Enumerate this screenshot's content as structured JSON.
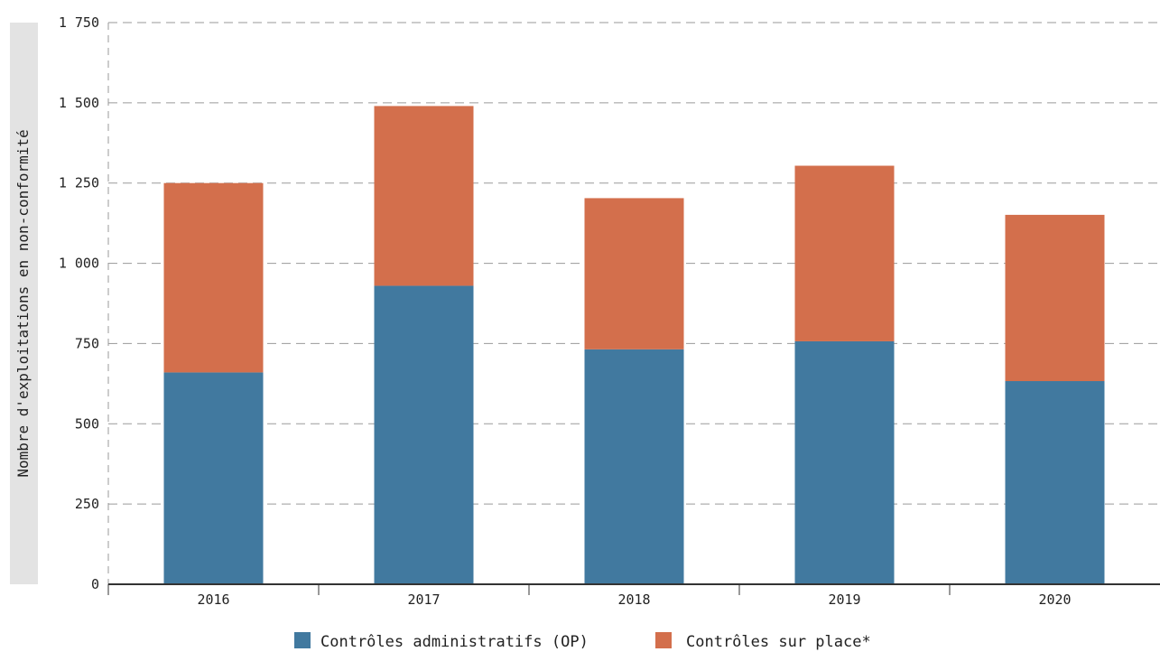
{
  "chart_data": {
    "type": "bar",
    "stacked": true,
    "title": "",
    "xlabel": "",
    "ylabel": "Nombre d'exploitations en non-conformité",
    "categories": [
      "2016",
      "2017",
      "2018",
      "2019",
      "2020"
    ],
    "series": [
      {
        "name": "Contrôles administratifs (OP)",
        "color": "#41799f",
        "values": [
          660,
          930,
          732,
          757,
          633
        ]
      },
      {
        "name": "Contrôles sur place*",
        "color": "#d36f4c",
        "values": [
          590,
          560,
          471,
          547,
          518
        ]
      }
    ],
    "ylim": [
      0,
      1750
    ],
    "yticks": [
      0,
      250,
      500,
      750,
      1000,
      1250,
      1500,
      1750
    ],
    "ytick_labels": [
      "0",
      "250",
      "500",
      "750",
      "1 000",
      "1 250",
      "1 500",
      "1 750"
    ],
    "grid": true,
    "legend_position": "bottom"
  }
}
